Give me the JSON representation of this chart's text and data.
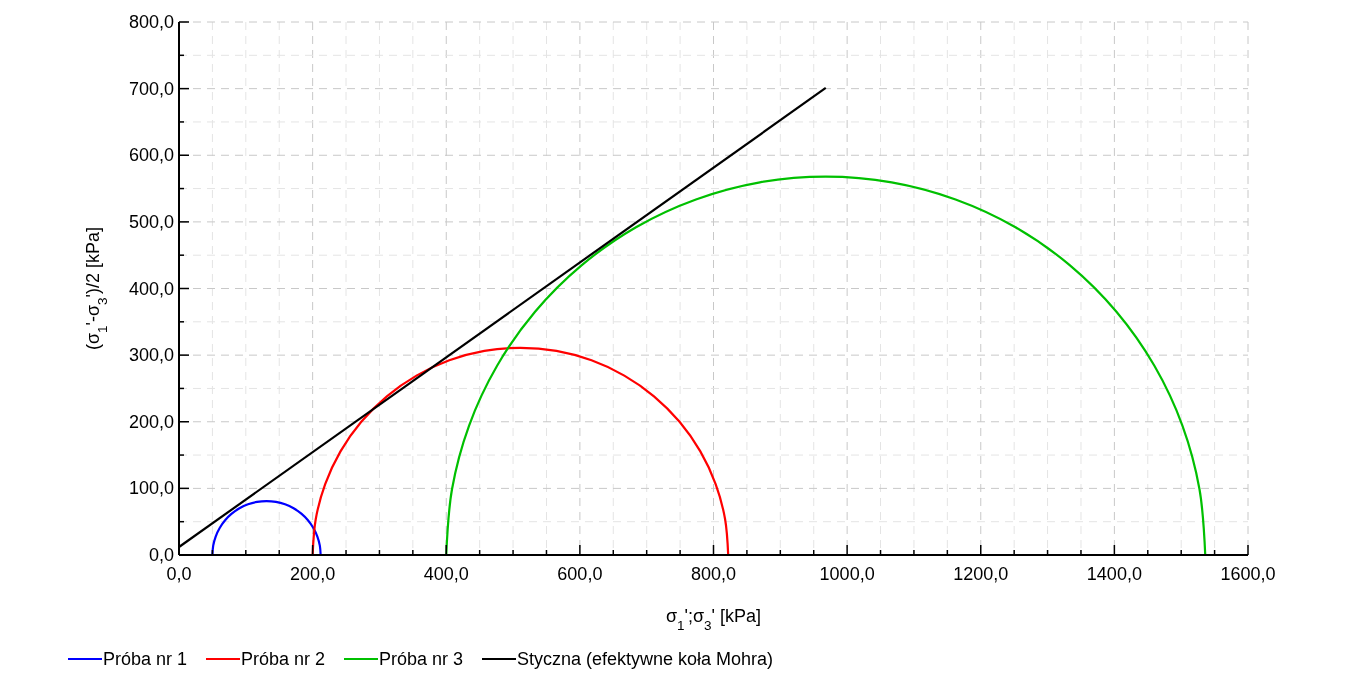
{
  "chart_data": {
    "type": "line",
    "xlabel": "σ$_{1}$';σ$_{3}$' [kPa]",
    "ylabel": "(σ$_{1}$'-σ$_{3}$')/2 [kPa]",
    "xlim": [
      0,
      1600
    ],
    "ylim": [
      0,
      800
    ],
    "xticks": [
      {
        "value": 0,
        "label": "0,0"
      },
      {
        "value": 50,
        "label": null
      },
      {
        "value": 100,
        "label": null
      },
      {
        "value": 150,
        "label": null
      },
      {
        "value": 200,
        "label": "200,0"
      },
      {
        "value": 250,
        "label": null
      },
      {
        "value": 300,
        "label": null
      },
      {
        "value": 350,
        "label": null
      },
      {
        "value": 400,
        "label": "400,0"
      },
      {
        "value": 450,
        "label": null
      },
      {
        "value": 500,
        "label": null
      },
      {
        "value": 550,
        "label": null
      },
      {
        "value": 600,
        "label": "600,0"
      },
      {
        "value": 650,
        "label": null
      },
      {
        "value": 700,
        "label": null
      },
      {
        "value": 750,
        "label": null
      },
      {
        "value": 800,
        "label": "800,0"
      },
      {
        "value": 850,
        "label": null
      },
      {
        "value": 900,
        "label": null
      },
      {
        "value": 950,
        "label": null
      },
      {
        "value": 1000,
        "label": "1000,0"
      },
      {
        "value": 1050,
        "label": null
      },
      {
        "value": 1100,
        "label": null
      },
      {
        "value": 1150,
        "label": null
      },
      {
        "value": 1200,
        "label": "1200,0"
      },
      {
        "value": 1250,
        "label": null
      },
      {
        "value": 1300,
        "label": null
      },
      {
        "value": 1350,
        "label": null
      },
      {
        "value": 1400,
        "label": "1400,0"
      },
      {
        "value": 1450,
        "label": null
      },
      {
        "value": 1500,
        "label": null
      },
      {
        "value": 1550,
        "label": null
      },
      {
        "value": 1600,
        "label": "1600,0"
      }
    ],
    "yticks": [
      {
        "value": 0,
        "label": "0,0"
      },
      {
        "value": 50,
        "label": null
      },
      {
        "value": 100,
        "label": "100,0"
      },
      {
        "value": 150,
        "label": null
      },
      {
        "value": 200,
        "label": "200,0"
      },
      {
        "value": 250,
        "label": null
      },
      {
        "value": 300,
        "label": "300,0"
      },
      {
        "value": 350,
        "label": null
      },
      {
        "value": 400,
        "label": "400,0"
      },
      {
        "value": 450,
        "label": null
      },
      {
        "value": 500,
        "label": "500,0"
      },
      {
        "value": 550,
        "label": null
      },
      {
        "value": 600,
        "label": "600,0"
      },
      {
        "value": 650,
        "label": null
      },
      {
        "value": 700,
        "label": "700,0"
      },
      {
        "value": 750,
        "label": null
      },
      {
        "value": 800,
        "label": "800,0"
      }
    ],
    "grid": true,
    "legend": "bottom",
    "marker": "none",
    "line_style": "solid",
    "series": [
      {
        "name": "Próba nr 1",
        "color": "#0000ff",
        "x": [
          212,
          210.8,
          207.1,
          201.1,
          193.0,
          183.1,
          171.5,
          158.7,
          145.1,
          131,
          116.9,
          103.3,
          90.5,
          78.9,
          69.0,
          60.9,
          54.9,
          51.2,
          50
        ],
        "values": [
          0,
          14.1,
          27.7,
          40.5,
          52.1,
          62.0,
          70.1,
          76.1,
          79.8,
          81,
          79.8,
          76.1,
          70.1,
          62.0,
          52.1,
          40.5,
          27.7,
          14.1,
          0
        ]
      },
      {
        "name": "Próba nr 2",
        "color": "#ff0000",
        "x": [
          822,
          817.3,
          803.2,
          780.3,
          749.2,
          710.9,
          666.5,
          617.4,
          565.0,
          511,
          457.0,
          404.6,
          355.5,
          311.1,
          272.8,
          241.7,
          218.8,
          204.7,
          200
        ],
        "values": [
          0,
          54.0,
          106.4,
          155.5,
          199.9,
          238.2,
          269.3,
          292.2,
          306.3,
          311,
          306.3,
          292.2,
          269.3,
          238.2,
          199.9,
          155.5,
          106.4,
          54.0,
          0
        ]
      },
      {
        "name": "Próba nr 3",
        "color": "#00c000",
        "x": [
          1536,
          1527.4,
          1501.8,
          1459.9,
          1403.1,
          1333.1,
          1252,
          1162.3,
          1066.6,
          968,
          869.4,
          773.7,
          684,
          602.9,
          532.9,
          476.1,
          434.2,
          408.6,
          400
        ],
        "values": [
          0,
          98.6,
          194.3,
          284,
          365.1,
          435.1,
          492,
          533.7,
          559.4,
          568,
          559.4,
          533.7,
          492,
          435.1,
          365.1,
          284,
          194.3,
          98.6,
          0
        ]
      },
      {
        "name": "Styczna (efektywne koła Mohra)",
        "color": "#000000",
        "x": [
          0,
          968
        ],
        "values": [
          12,
          701
        ]
      }
    ]
  }
}
